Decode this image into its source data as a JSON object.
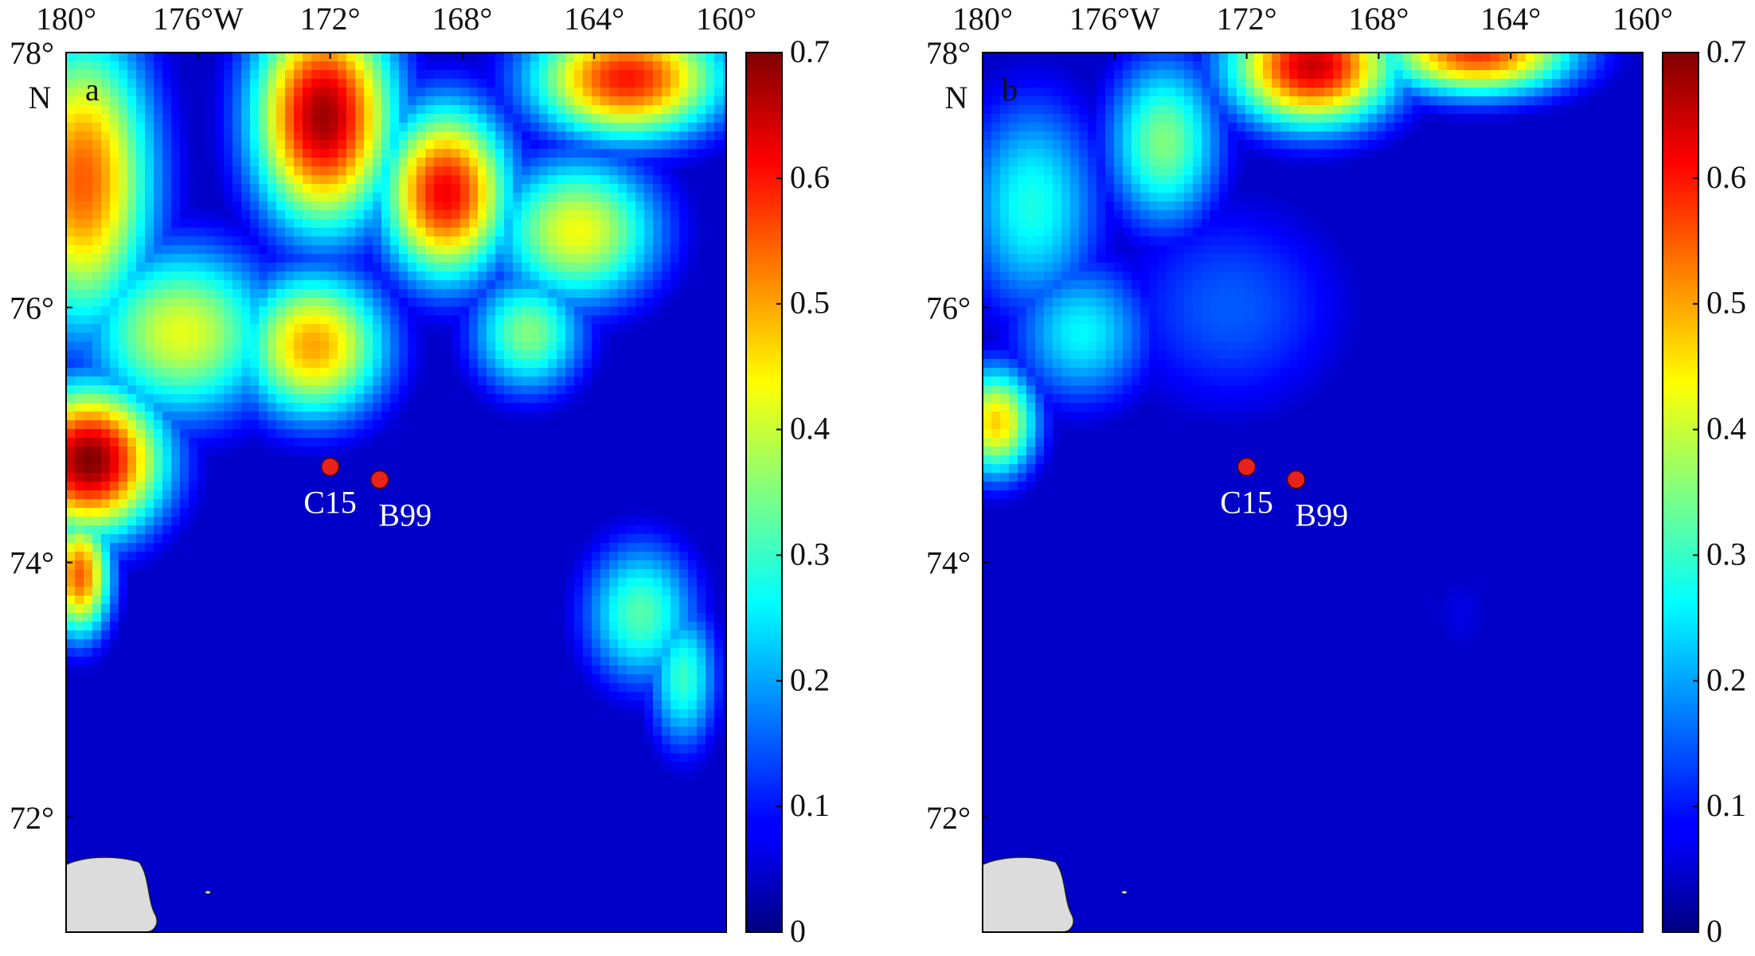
{
  "figure": {
    "colormap": "jet",
    "land_color": "#dcdcdc",
    "ocean_min_color": "#140a8c",
    "station_color": "#e8231b",
    "station_stroke": "#5a0000"
  },
  "map_extent": {
    "lon_west": -180,
    "lon_east": -160,
    "lat_south": 71.1,
    "lat_north": 78
  },
  "lon_ticks": [
    {
      "value": -180,
      "label": "180°"
    },
    {
      "value": -176,
      "label": "176°W"
    },
    {
      "value": -172,
      "label": "172°"
    },
    {
      "value": -168,
      "label": "168°"
    },
    {
      "value": -164,
      "label": "164°"
    },
    {
      "value": -160,
      "label": "160°"
    }
  ],
  "lat_ticks": [
    {
      "value": 78,
      "label": "78°"
    },
    {
      "value": 76,
      "label": "76°"
    },
    {
      "value": 74,
      "label": "74°"
    },
    {
      "value": 72,
      "label": "72°"
    }
  ],
  "lat_hemisphere": "N",
  "colorbar": {
    "min": 0,
    "max": 0.7,
    "ticks": [
      {
        "value": 0.7,
        "label": "0.7"
      },
      {
        "value": 0.6,
        "label": "0.6"
      },
      {
        "value": 0.5,
        "label": "0.5"
      },
      {
        "value": 0.4,
        "label": "0.4"
      },
      {
        "value": 0.3,
        "label": "0.3"
      },
      {
        "value": 0.2,
        "label": "0.2"
      },
      {
        "value": 0.1,
        "label": "0.1"
      },
      {
        "value": 0,
        "label": "0"
      }
    ]
  },
  "stations": [
    {
      "name": "C15",
      "lon": -172,
      "lat": 74.75
    },
    {
      "name": "B99",
      "lon": -170.5,
      "lat": 74.65
    }
  ],
  "panels": [
    {
      "letter": "a",
      "base": 0.05,
      "sources": [
        {
          "lon": -172.2,
          "lat": 77.5,
          "amp": 0.68,
          "rlon": 2.2,
          "rlat": 0.9
        },
        {
          "lon": -168.5,
          "lat": 76.9,
          "amp": 0.62,
          "rlon": 2.0,
          "rlat": 0.7
        },
        {
          "lon": -163.0,
          "lat": 77.8,
          "amp": 0.6,
          "rlon": 3.0,
          "rlat": 0.5
        },
        {
          "lon": -179.5,
          "lat": 77.0,
          "amp": 0.55,
          "rlon": 2.2,
          "rlat": 1.2
        },
        {
          "lon": -179.3,
          "lat": 74.8,
          "amp": 0.7,
          "rlon": 2.3,
          "rlat": 0.6
        },
        {
          "lon": -179.6,
          "lat": 73.9,
          "amp": 0.55,
          "rlon": 1.0,
          "rlat": 0.5
        },
        {
          "lon": -176.5,
          "lat": 75.8,
          "amp": 0.42,
          "rlon": 3.0,
          "rlat": 0.7
        },
        {
          "lon": -172.5,
          "lat": 75.7,
          "amp": 0.5,
          "rlon": 2.3,
          "rlat": 0.6
        },
        {
          "lon": -164.5,
          "lat": 76.6,
          "amp": 0.43,
          "rlon": 2.6,
          "rlat": 0.6
        },
        {
          "lon": -166.0,
          "lat": 75.8,
          "amp": 0.35,
          "rlon": 1.8,
          "rlat": 0.5
        },
        {
          "lon": -162.6,
          "lat": 73.6,
          "amp": 0.32,
          "rlon": 1.8,
          "rlat": 0.6
        },
        {
          "lon": -161.3,
          "lat": 73.1,
          "amp": 0.3,
          "rlon": 1.1,
          "rlat": 0.6
        }
      ]
    },
    {
      "letter": "b",
      "base": 0.05,
      "sources": [
        {
          "lon": -170.0,
          "lat": 77.9,
          "amp": 0.65,
          "rlon": 2.6,
          "rlat": 0.5
        },
        {
          "lon": -165.0,
          "lat": 78.0,
          "amp": 0.58,
          "rlon": 3.0,
          "rlat": 0.35
        },
        {
          "lon": -174.5,
          "lat": 77.3,
          "amp": 0.35,
          "rlon": 1.8,
          "rlat": 0.7
        },
        {
          "lon": -178.5,
          "lat": 76.8,
          "amp": 0.28,
          "rlon": 2.2,
          "rlat": 0.9
        },
        {
          "lon": -179.6,
          "lat": 75.1,
          "amp": 0.47,
          "rlon": 1.3,
          "rlat": 0.45
        },
        {
          "lon": -177.0,
          "lat": 75.8,
          "amp": 0.26,
          "rlon": 2.2,
          "rlat": 0.6
        },
        {
          "lon": -172.5,
          "lat": 76.0,
          "amp": 0.15,
          "rlon": 3.8,
          "rlat": 0.9
        },
        {
          "lon": -165.5,
          "lat": 73.6,
          "amp": 0.07,
          "rlon": 1.2,
          "rlat": 0.45
        }
      ]
    }
  ]
}
